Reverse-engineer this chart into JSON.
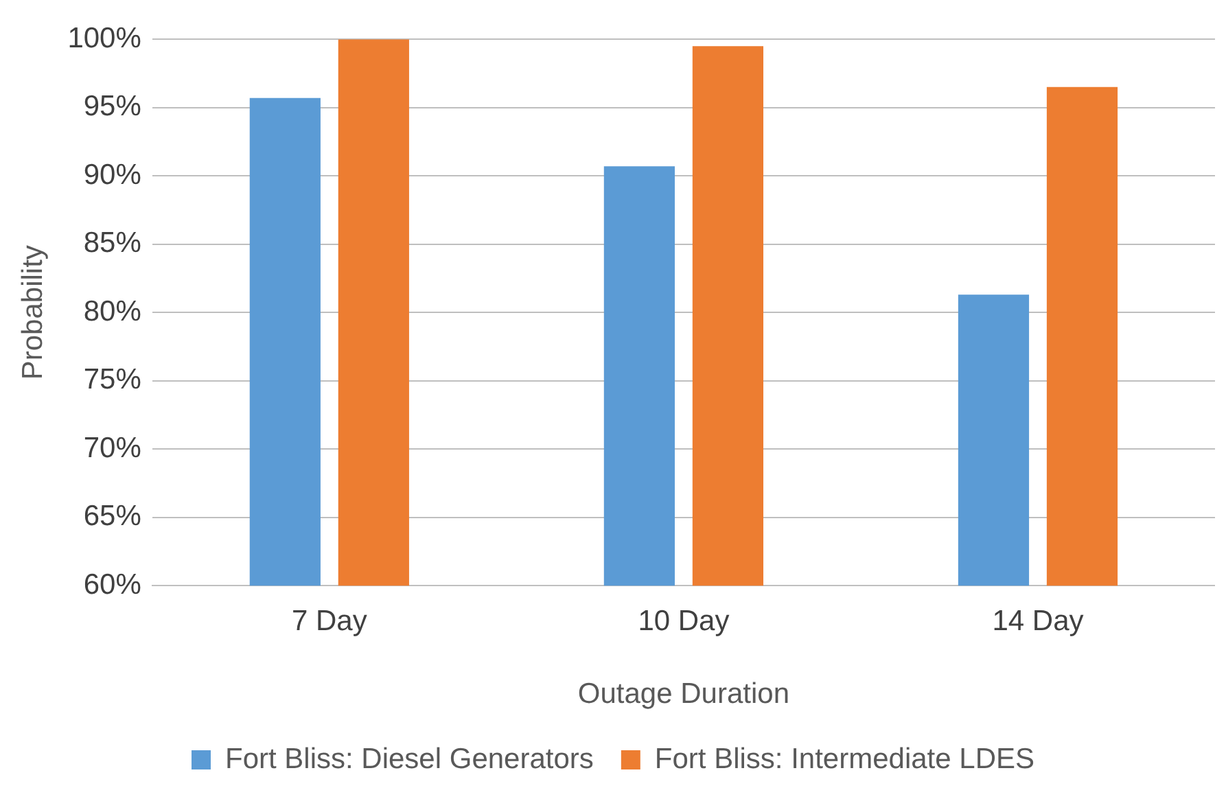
{
  "chart_data": {
    "type": "bar",
    "xlabel": "Outage Duration",
    "ylabel": "Probability",
    "categories": [
      "7 Day",
      "10 Day",
      "14 Day"
    ],
    "series": [
      {
        "name": "Fort Bliss: Diesel Generators",
        "color": "#5b9bd5",
        "values": [
          95.7,
          90.7,
          81.3
        ]
      },
      {
        "name": "Fort Bliss: Intermediate LDES",
        "color": "#ed7d31",
        "values": [
          100,
          99.5,
          96.5
        ]
      }
    ],
    "ylim": [
      60,
      100
    ],
    "yticks": [
      {
        "value": 60,
        "label": "60%"
      },
      {
        "value": 65,
        "label": "65%"
      },
      {
        "value": 70,
        "label": "70%"
      },
      {
        "value": 75,
        "label": "75%"
      },
      {
        "value": 80,
        "label": "80%"
      },
      {
        "value": 85,
        "label": "85%"
      },
      {
        "value": 90,
        "label": "90%"
      },
      {
        "value": 95,
        "label": "95%"
      },
      {
        "value": 100,
        "label": "100%"
      }
    ],
    "grid": "y",
    "legend": "bottom"
  }
}
